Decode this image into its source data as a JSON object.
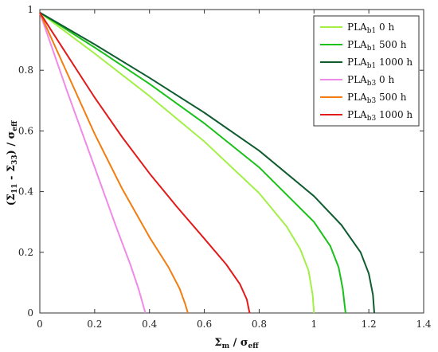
{
  "chart_data": {
    "type": "line",
    "xlabel": {
      "main": "Σ",
      "main_sub": "m",
      "rest": " / σ",
      "rest_sub": "eff"
    },
    "ylabel": {
      "p1": "(Σ",
      "s1": "11",
      "p2": " - Σ",
      "s2": "33",
      "p3": ") / σ",
      "s3": "eff"
    },
    "xlim": [
      0,
      1.4
    ],
    "ylim": [
      0,
      1
    ],
    "xticks": [
      "0",
      "0.2",
      "0.4",
      "0.6",
      "0.8",
      "1",
      "1.2",
      "1.4"
    ],
    "yticks": [
      "0",
      "0.2",
      "0.4",
      "0.6",
      "0.8",
      "1"
    ],
    "grid": false,
    "legend_position": "top-right",
    "series": [
      {
        "name": "PLA",
        "sub": "b1",
        "suffix": " 0 h",
        "color": "#a2f046",
        "points": [
          [
            0,
            0.99
          ],
          [
            0.2,
            0.855
          ],
          [
            0.4,
            0.715
          ],
          [
            0.6,
            0.565
          ],
          [
            0.8,
            0.395
          ],
          [
            0.9,
            0.285
          ],
          [
            0.95,
            0.21
          ],
          [
            0.98,
            0.14
          ],
          [
            0.995,
            0.06
          ],
          [
            1.0,
            0.0
          ]
        ]
      },
      {
        "name": "PLA",
        "sub": "b1",
        "suffix": " 500 h",
        "color": "#19c119",
        "points": [
          [
            0,
            0.99
          ],
          [
            0.2,
            0.875
          ],
          [
            0.4,
            0.755
          ],
          [
            0.6,
            0.625
          ],
          [
            0.8,
            0.48
          ],
          [
            1.0,
            0.3
          ],
          [
            1.06,
            0.22
          ],
          [
            1.09,
            0.15
          ],
          [
            1.105,
            0.08
          ],
          [
            1.115,
            0.0
          ]
        ]
      },
      {
        "name": "PLA",
        "sub": "b1",
        "suffix": " 1000 h",
        "color": "#0f5c2f",
        "points": [
          [
            0,
            0.99
          ],
          [
            0.2,
            0.885
          ],
          [
            0.4,
            0.775
          ],
          [
            0.6,
            0.66
          ],
          [
            0.8,
            0.535
          ],
          [
            1.0,
            0.385
          ],
          [
            1.1,
            0.29
          ],
          [
            1.17,
            0.2
          ],
          [
            1.2,
            0.13
          ],
          [
            1.215,
            0.06
          ],
          [
            1.22,
            0.0
          ]
        ]
      },
      {
        "name": "PLA",
        "sub": "b3",
        "suffix": " 0 h",
        "color": "#f08ae6",
        "points": [
          [
            0,
            0.99
          ],
          [
            0.1,
            0.73
          ],
          [
            0.2,
            0.48
          ],
          [
            0.28,
            0.28
          ],
          [
            0.33,
            0.16
          ],
          [
            0.36,
            0.08
          ],
          [
            0.385,
            0.0
          ]
        ]
      },
      {
        "name": "PLA",
        "sub": "b3",
        "suffix": " 500 h",
        "color": "#f27d10",
        "points": [
          [
            0,
            0.99
          ],
          [
            0.1,
            0.79
          ],
          [
            0.2,
            0.59
          ],
          [
            0.3,
            0.41
          ],
          [
            0.4,
            0.25
          ],
          [
            0.47,
            0.15
          ],
          [
            0.51,
            0.08
          ],
          [
            0.53,
            0.03
          ],
          [
            0.54,
            0.0
          ]
        ]
      },
      {
        "name": "PLA",
        "sub": "b3",
        "suffix": " 1000 h",
        "color": "#e21a1a",
        "points": [
          [
            0,
            0.99
          ],
          [
            0.1,
            0.85
          ],
          [
            0.2,
            0.71
          ],
          [
            0.3,
            0.58
          ],
          [
            0.4,
            0.46
          ],
          [
            0.5,
            0.35
          ],
          [
            0.6,
            0.245
          ],
          [
            0.68,
            0.16
          ],
          [
            0.73,
            0.095
          ],
          [
            0.755,
            0.045
          ],
          [
            0.765,
            0.0
          ]
        ]
      }
    ]
  }
}
